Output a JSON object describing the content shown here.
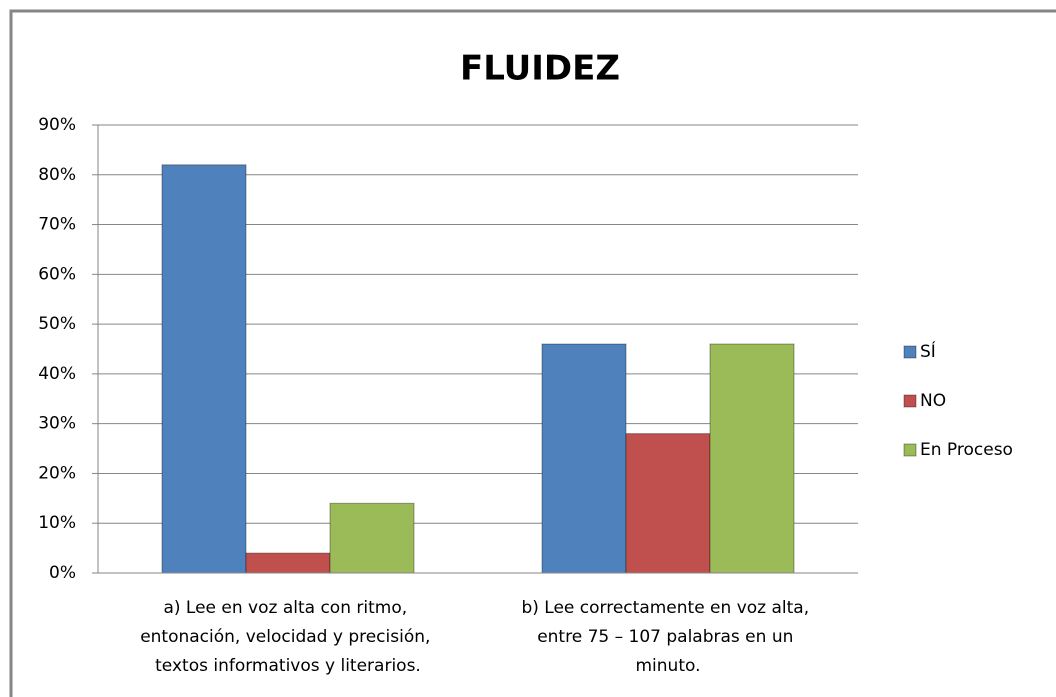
{
  "chart_data": {
    "type": "bar",
    "title": "FLUIDEZ",
    "categories": [
      "a) Lee en voz alta con ritmo, entonación, velocidad y precisión, textos informativos y literarios.",
      "b) Lee correctamente en voz alta, entre 75 – 107 palabras en un minuto."
    ],
    "series": [
      {
        "name": "SÍ",
        "color": "#4f81bd",
        "values": [
          82,
          46
        ]
      },
      {
        "name": "NO",
        "color": "#c0504d",
        "values": [
          4,
          28
        ]
      },
      {
        "name": "En Proceso",
        "color": "#9bbb59",
        "values": [
          14,
          46
        ]
      }
    ],
    "ylim": [
      0,
      90
    ],
    "yticks": [
      {
        "value": 0,
        "label": "0%"
      },
      {
        "value": 10,
        "label": "10%"
      },
      {
        "value": 20,
        "label": "20%"
      },
      {
        "value": 30,
        "label": "30%"
      },
      {
        "value": 40,
        "label": "40%"
      },
      {
        "value": 50,
        "label": "50%"
      },
      {
        "value": 60,
        "label": "60%"
      },
      {
        "value": 70,
        "label": "70%"
      },
      {
        "value": 80,
        "label": "80%"
      },
      {
        "value": 90,
        "label": "90%"
      }
    ],
    "grid": true,
    "legend": "right"
  }
}
